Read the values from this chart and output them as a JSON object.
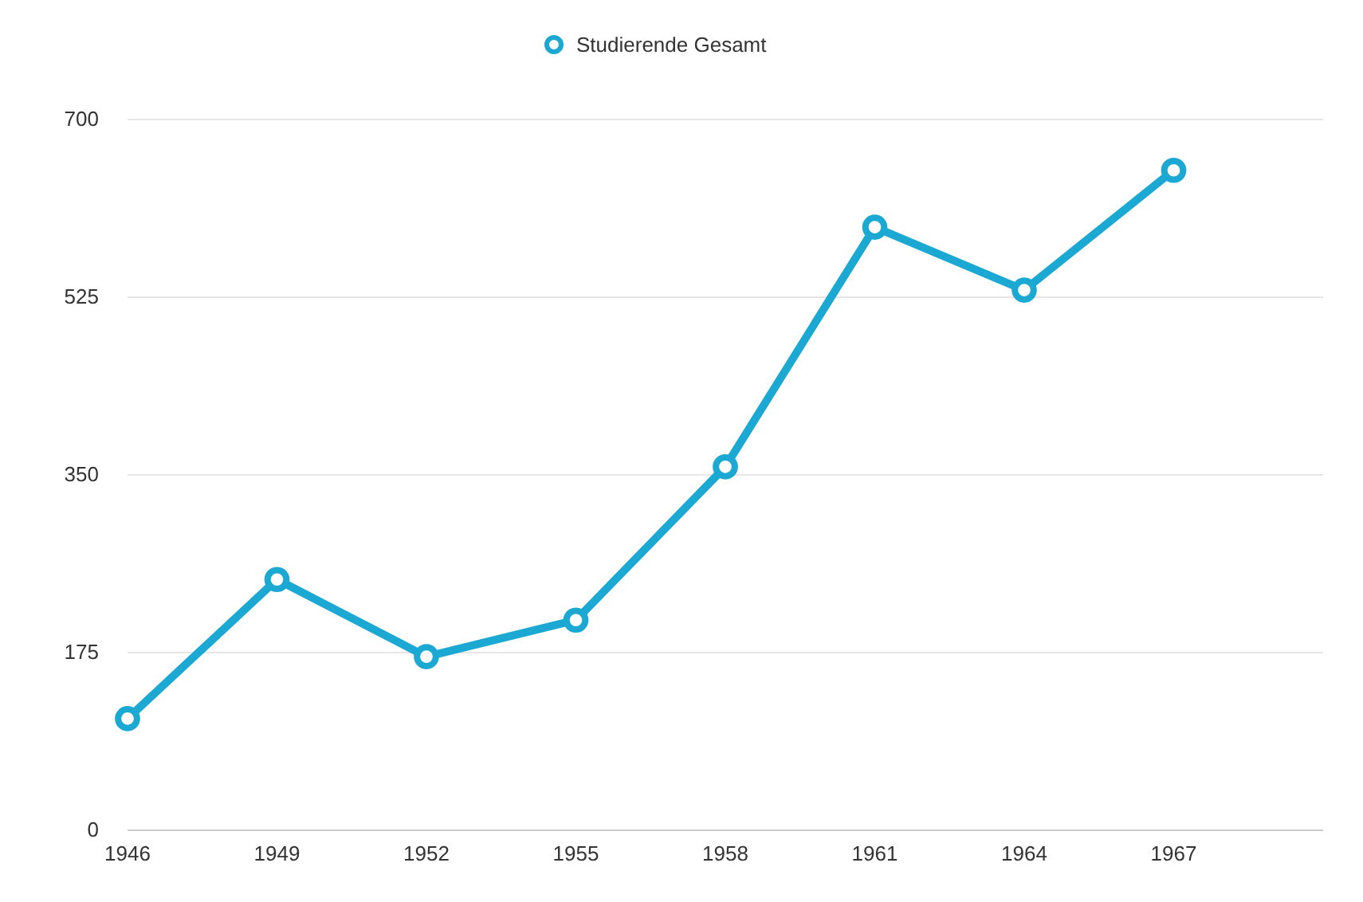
{
  "chart_data": {
    "type": "line",
    "x": [
      1946,
      1949,
      1952,
      1955,
      1958,
      1961,
      1964,
      1967
    ],
    "series": [
      {
        "name": "Studierende Gesamt",
        "color": "#1ba8d2",
        "values": [
          110,
          247,
          171,
          207,
          358,
          594,
          532,
          650
        ]
      }
    ],
    "xlim": [
      1946,
      1970
    ],
    "xticks": [
      1946,
      1949,
      1952,
      1955,
      1958,
      1961,
      1964,
      1967
    ],
    "ylim": [
      0,
      700
    ],
    "yticks": [
      0,
      175,
      350,
      525,
      700
    ],
    "grid": "y",
    "legend": "top",
    "marker": "circle",
    "line_style": "solid"
  }
}
